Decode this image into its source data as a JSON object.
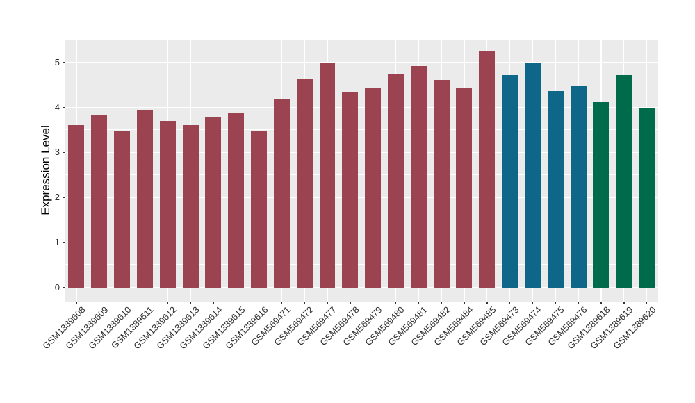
{
  "chart": {
    "ylabel": "Expression Level",
    "background_color": "#FFFFFF",
    "panel_background_color": "#EBEBEB",
    "gridline_color": "#FFFFFF",
    "axis_text_color": "#2E2E2E",
    "tick_mark_color": "#333333"
  },
  "chart_data": {
    "type": "bar",
    "title": "",
    "xlabel": "",
    "ylabel": "Expression Level",
    "ylim": [
      0,
      5.5
    ],
    "yticks": [
      0,
      1,
      2,
      3,
      4,
      5
    ],
    "grid": true,
    "legend_position": "none",
    "categories": [
      "GSM1389608",
      "GSM1389609",
      "GSM1389610",
      "GSM1389611",
      "GSM1389612",
      "GSM1389613",
      "GSM1389614",
      "GSM1389615",
      "GSM1389616",
      "GSM569471",
      "GSM569472",
      "GSM569477",
      "GSM569478",
      "GSM569479",
      "GSM569480",
      "GSM569481",
      "GSM569482",
      "GSM569484",
      "GSM569485",
      "GSM569473",
      "GSM569474",
      "GSM569475",
      "GSM569476",
      "GSM1389618",
      "GSM1389619",
      "GSM1389620"
    ],
    "values": [
      3.61,
      3.83,
      3.48,
      3.94,
      3.7,
      3.61,
      3.77,
      3.89,
      3.47,
      4.2,
      4.64,
      4.98,
      4.33,
      4.42,
      4.75,
      4.92,
      4.61,
      4.44,
      5.25,
      4.72,
      4.98,
      4.37,
      4.47,
      4.12,
      4.72,
      3.98
    ],
    "groups": [
      "maroon",
      "maroon",
      "maroon",
      "maroon",
      "maroon",
      "maroon",
      "maroon",
      "maroon",
      "maroon",
      "maroon",
      "maroon",
      "maroon",
      "maroon",
      "maroon",
      "maroon",
      "maroon",
      "maroon",
      "maroon",
      "maroon",
      "teal",
      "teal",
      "teal",
      "teal",
      "green",
      "green",
      "green"
    ],
    "palette": {
      "maroon": "#9C4351",
      "teal": "#0E6688",
      "green": "#006B4A"
    }
  }
}
